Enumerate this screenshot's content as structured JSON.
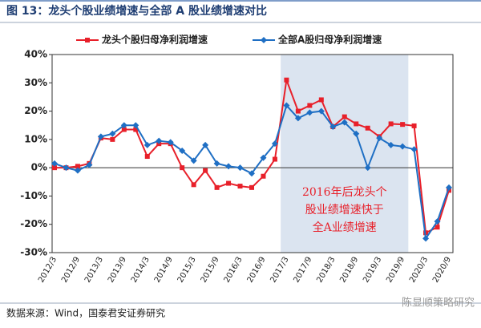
{
  "chart_data": {
    "type": "line",
    "title": "图 13：龙头个股业绩增速与全部 A 股业绩增速对比",
    "source": "数据来源：Wind，国泰君安证券研究",
    "watermark": "陈显顺策略研究",
    "annotation": [
      "2016年后龙头个",
      "股业绩增速快于",
      "全A业绩增速"
    ],
    "categories": [
      "2012/3",
      null,
      "2012/9",
      null,
      "2013/3",
      null,
      "2013/9",
      null,
      "2014/3",
      null,
      "2014/9",
      null,
      "2015/3",
      null,
      "2015/9",
      null,
      "2016/3",
      null,
      "2016/9",
      null,
      "2017/3",
      null,
      "2017/9",
      null,
      "2018/3",
      null,
      "2018/9",
      null,
      "2019/3",
      null,
      "2019/9",
      null,
      "2020/3",
      null,
      "2020/9"
    ],
    "series": [
      {
        "name": "龙头个股归母净利润增速",
        "color": "#e8202a",
        "marker": "square",
        "values": [
          0,
          0,
          0.5,
          1.5,
          10.5,
          10,
          13.5,
          13.5,
          4,
          8.5,
          8.5,
          0,
          -6,
          -1,
          -7,
          -5.5,
          -6.5,
          -7,
          -3,
          3,
          31,
          20,
          22,
          24,
          14.5,
          18,
          15.5,
          14,
          11,
          15.5,
          15.3,
          14.8,
          -23,
          -21,
          -8
        ]
      },
      {
        "name": "全部A股归母净利润增速",
        "color": "#1f6fc4",
        "marker": "diamond",
        "values": [
          1.5,
          0,
          -1,
          1,
          11,
          12,
          15,
          15,
          8,
          9.5,
          9,
          6,
          2.5,
          8,
          1.5,
          0.5,
          0,
          -2,
          3.5,
          8.5,
          22,
          17.5,
          19.5,
          20,
          14.5,
          16,
          12,
          0,
          10.5,
          8,
          7.5,
          6.5,
          -25,
          -19,
          -7
        ]
      }
    ],
    "ylim": [
      -30,
      40
    ],
    "yticks": [
      {
        "value": -30,
        "label": "-30%"
      },
      {
        "value": -20,
        "label": "-20%"
      },
      {
        "value": -10,
        "label": "-10%"
      },
      {
        "value": 0,
        "label": "0%"
      },
      {
        "value": 10,
        "label": "10%"
      },
      {
        "value": 20,
        "label": "20%"
      },
      {
        "value": 30,
        "label": "30%"
      },
      {
        "value": 40,
        "label": "40%"
      }
    ],
    "grid": false,
    "legend": "top"
  }
}
